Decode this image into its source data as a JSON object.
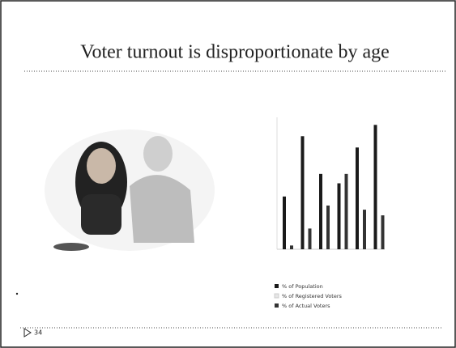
{
  "slide": {
    "title": "Voter turnout is disproportionate by age",
    "page_number": "34"
  },
  "chart_data": {
    "type": "bar",
    "categories": [
      null,
      null,
      null,
      null,
      null,
      null
    ],
    "series": [
      {
        "name": "% of Population",
        "color": "#1a1a1a",
        "values": [
          14,
          30,
          20,
          17.5,
          27,
          33
        ]
      },
      {
        "name": "% of Registered Voters",
        "color": "#e6e6e6",
        "values": [
          null,
          null,
          null,
          null,
          null,
          null
        ]
      },
      {
        "name": "% of Actual Voters",
        "color": "#333333",
        "values": [
          1,
          5.5,
          11.6,
          20,
          10.5,
          9
        ]
      }
    ],
    "ylim": [
      0,
      35
    ]
  }
}
